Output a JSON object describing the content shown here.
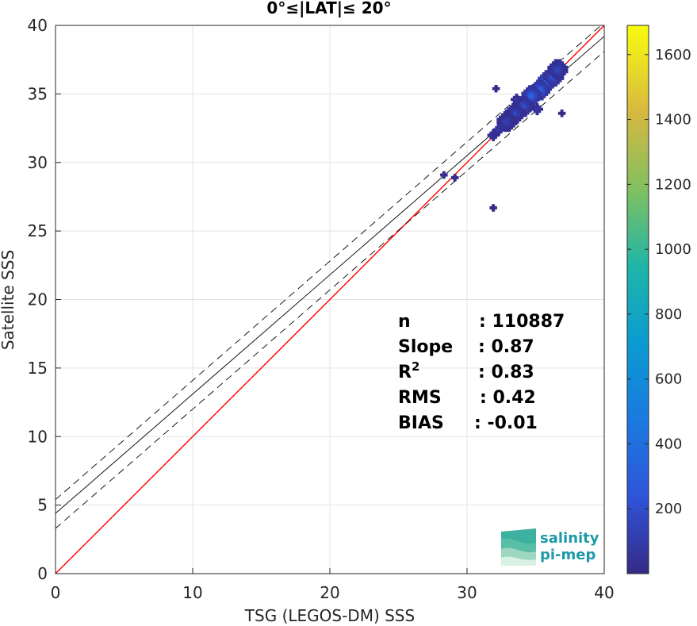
{
  "chart_data": {
    "type": "scatter",
    "title": "0°≤|LAT|≤ 20°",
    "xlabel": "TSG (LEGOS-DM) SSS",
    "ylabel": "Satellite SSS",
    "xlim": [
      0,
      40
    ],
    "ylim": [
      0,
      40
    ],
    "x_ticks": [
      "0",
      "10",
      "20",
      "30",
      "40"
    ],
    "y_ticks": [
      "0",
      "5",
      "10",
      "15",
      "20",
      "25",
      "30",
      "35",
      "40"
    ],
    "grid": true,
    "colorbar": {
      "range": [
        0,
        1690
      ],
      "ticks": [
        "200",
        "400",
        "600",
        "800",
        "1000",
        "1200",
        "1400",
        "1600"
      ],
      "colormap": "parula"
    },
    "density": {
      "bins": [
        {
          "x": 35.8,
          "y": 35.9,
          "count": 600
        },
        {
          "x": 35.2,
          "y": 35.2,
          "count": 500
        },
        {
          "x": 34.6,
          "y": 34.8,
          "count": 450
        },
        {
          "x": 36.2,
          "y": 36.2,
          "count": 350
        },
        {
          "x": 34.0,
          "y": 34.0,
          "count": 300
        },
        {
          "x": 33.4,
          "y": 33.5,
          "count": 220
        },
        {
          "x": 36.5,
          "y": 36.7,
          "count": 200
        },
        {
          "x": 32.8,
          "y": 32.9,
          "count": 150
        },
        {
          "x": 32.2,
          "y": 32.3,
          "count": 100
        },
        {
          "x": 31.8,
          "y": 31.9,
          "count": 60
        },
        {
          "x": 33.5,
          "y": 34.5,
          "count": 80
        },
        {
          "x": 35.0,
          "y": 33.8,
          "count": 80
        },
        {
          "x": 28.2,
          "y": 29.0,
          "count": 30
        },
        {
          "x": 29.0,
          "y": 28.8,
          "count": 20
        },
        {
          "x": 31.8,
          "y": 26.6,
          "count": 10
        },
        {
          "x": 32.0,
          "y": 35.3,
          "count": 20
        },
        {
          "x": 36.8,
          "y": 33.5,
          "count": 20
        }
      ]
    },
    "lines": [
      {
        "role": "one-to-one",
        "color": "#ff0000",
        "style": "solid",
        "slope": 1.0,
        "intercept": 0.0
      },
      {
        "role": "regression",
        "color": "#000000",
        "style": "solid",
        "slope": 0.87,
        "intercept": 4.4
      },
      {
        "role": "regression-upper",
        "color": "#000000",
        "style": "dashed",
        "slope": 0.87,
        "intercept": 5.4
      },
      {
        "role": "regression-lower",
        "color": "#000000",
        "style": "dashed",
        "slope": 0.87,
        "intercept": 3.3
      }
    ],
    "stats": [
      {
        "label": "n",
        "value": ": 110887"
      },
      {
        "label": "Slope",
        "value": ": 0.87"
      },
      {
        "label": "R",
        "sup": "2",
        "value": ": 0.83"
      },
      {
        "label": "RMS",
        "value": ": 0.42"
      },
      {
        "label": "BIAS",
        "value": ": -0.01"
      }
    ]
  },
  "logo": {
    "line1": "salinity",
    "line2": "pi-mep",
    "color": "#1e9aa6"
  }
}
